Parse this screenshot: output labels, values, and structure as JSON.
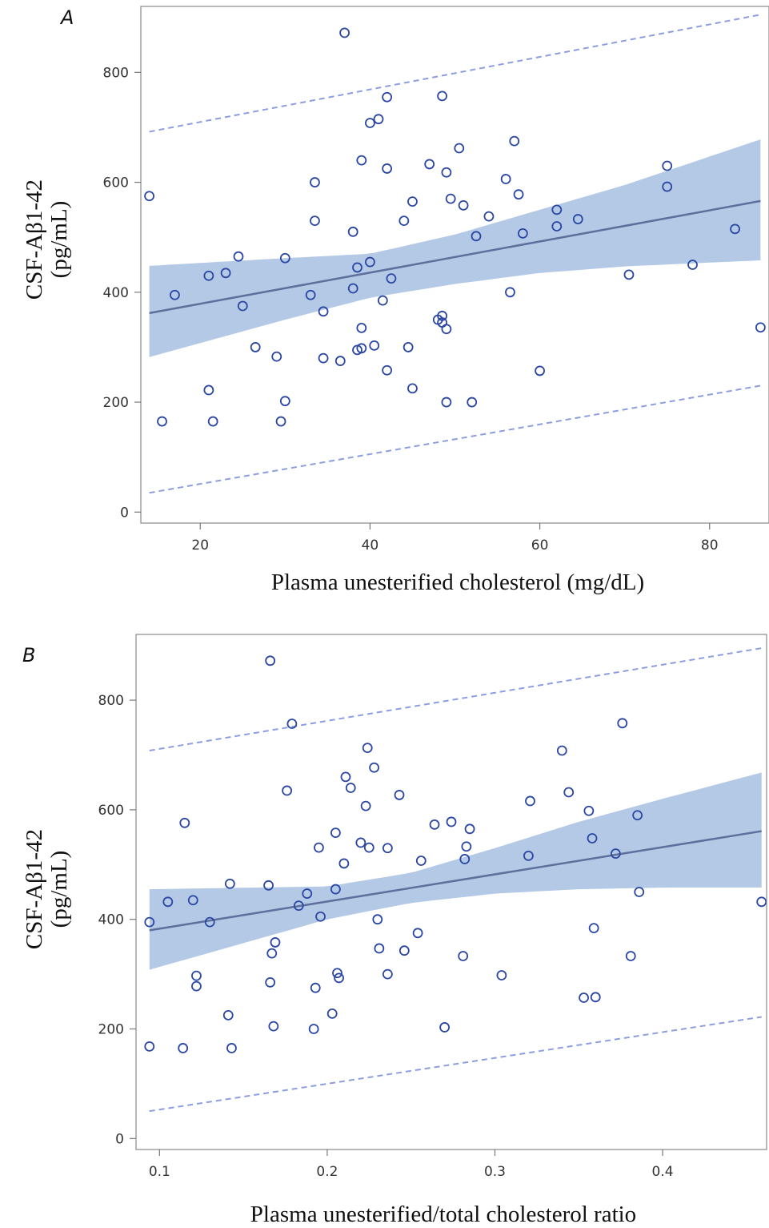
{
  "chart_data": [
    {
      "type": "scatter",
      "panel_label": "A",
      "xlabel": "Plasma unesterified cholesterol (mg/dL)",
      "ylabel": "CSF-Aβ1-42 (pg/mL)",
      "ylabel_lines": [
        "CSF-Aβ1-42",
        "(pg/mL)"
      ],
      "xlim": [
        13,
        87
      ],
      "ylim": [
        -20,
        920
      ],
      "xticks": [
        20,
        40,
        60,
        80
      ],
      "yticks": [
        0,
        200,
        400,
        600,
        800
      ],
      "grid": false,
      "series": [
        {
          "kind": "points",
          "x": [
            14,
            15.5,
            17,
            21,
            21,
            21.5,
            23,
            24.5,
            25,
            26.5,
            29,
            29.5,
            30,
            30,
            33,
            33.5,
            33.5,
            34.5,
            34.5,
            36.5,
            37,
            38,
            38,
            38.5,
            38.5,
            39,
            39,
            39,
            40,
            40,
            40.5,
            41,
            41.5,
            42,
            42,
            42,
            42.5,
            44,
            44.5,
            45,
            45,
            47,
            48,
            48.5,
            48.5,
            48.5,
            49,
            49,
            49,
            49.5,
            50.5,
            51,
            52,
            52.5,
            54,
            56,
            56.5,
            57,
            57.5,
            58,
            60,
            62,
            62,
            64.5,
            70.5,
            75,
            75,
            78,
            83,
            86
          ],
          "y": [
            575,
            165,
            395,
            430,
            222,
            165,
            435,
            465,
            375,
            300,
            283,
            165,
            462,
            202,
            395,
            600,
            530,
            365,
            280,
            275,
            872,
            510,
            407,
            445,
            295,
            335,
            298,
            640,
            455,
            708,
            303,
            715,
            385,
            625,
            755,
            258,
            425,
            530,
            300,
            225,
            565,
            633,
            350,
            757,
            357,
            345,
            618,
            333,
            200,
            570,
            662,
            558,
            200,
            502,
            538,
            606,
            400,
            675,
            578,
            507,
            257,
            550,
            520,
            533,
            432,
            630,
            592,
            450,
            515,
            336
          ]
        },
        {
          "kind": "fit",
          "x": [
            14,
            86
          ],
          "y": [
            362,
            566
          ]
        },
        {
          "kind": "confidence_band",
          "x": [
            14,
            30,
            40,
            50,
            60,
            70,
            86
          ],
          "lower": [
            282,
            350,
            390,
            415,
            435,
            447,
            458
          ],
          "upper": [
            448,
            462,
            470,
            505,
            550,
            595,
            678
          ]
        },
        {
          "kind": "prediction_limits",
          "x": [
            14,
            86
          ],
          "lower": [
            35,
            230
          ],
          "upper": [
            692,
            905
          ]
        }
      ]
    },
    {
      "type": "scatter",
      "panel_label": "B",
      "xlabel": "Plasma unesterified/total cholesterol ratio",
      "ylabel": "CSF-Aβ1-42 (pg/mL)",
      "ylabel_lines": [
        "CSF-Aβ1-42",
        "(pg/mL)"
      ],
      "xlim": [
        0.086,
        0.462
      ],
      "ylim": [
        -20,
        920
      ],
      "xticks": [
        0.1,
        0.2,
        0.3,
        0.4
      ],
      "yticks": [
        0,
        200,
        400,
        600,
        800
      ],
      "grid": false,
      "series": [
        {
          "kind": "points",
          "x": [
            0.094,
            0.094,
            0.105,
            0.114,
            0.115,
            0.12,
            0.122,
            0.122,
            0.13,
            0.141,
            0.142,
            0.143,
            0.165,
            0.166,
            0.166,
            0.167,
            0.168,
            0.169,
            0.176,
            0.179,
            0.183,
            0.188,
            0.192,
            0.193,
            0.195,
            0.196,
            0.203,
            0.205,
            0.205,
            0.206,
            0.207,
            0.21,
            0.211,
            0.214,
            0.22,
            0.223,
            0.224,
            0.225,
            0.228,
            0.23,
            0.231,
            0.236,
            0.236,
            0.243,
            0.246,
            0.254,
            0.256,
            0.264,
            0.27,
            0.274,
            0.281,
            0.282,
            0.283,
            0.285,
            0.304,
            0.32,
            0.321,
            0.34,
            0.344,
            0.353,
            0.356,
            0.358,
            0.359,
            0.36,
            0.372,
            0.376,
            0.381,
            0.385,
            0.386,
            0.459
          ],
          "y": [
            395,
            168,
            432,
            165,
            576,
            435,
            278,
            297,
            395,
            225,
            465,
            165,
            462,
            285,
            872,
            338,
            205,
            358,
            635,
            757,
            425,
            447,
            200,
            275,
            531,
            405,
            228,
            558,
            455,
            302,
            293,
            502,
            660,
            640,
            540,
            607,
            713,
            531,
            677,
            400,
            347,
            300,
            530,
            627,
            343,
            375,
            507,
            573,
            203,
            578,
            333,
            510,
            533,
            565,
            298,
            516,
            616,
            708,
            632,
            257,
            598,
            548,
            384,
            258,
            520,
            758,
            333,
            590,
            450,
            432
          ]
        },
        {
          "kind": "fit",
          "x": [
            0.094,
            0.459
          ],
          "y": [
            380,
            561
          ]
        },
        {
          "kind": "confidence_band",
          "x": [
            0.094,
            0.2,
            0.25,
            0.3,
            0.35,
            0.4,
            0.459
          ],
          "lower": [
            308,
            400,
            430,
            447,
            455,
            458,
            458
          ],
          "upper": [
            455,
            460,
            485,
            530,
            578,
            620,
            668
          ]
        },
        {
          "kind": "prediction_limits",
          "x": [
            0.094,
            0.459
          ],
          "lower": [
            50,
            222
          ],
          "upper": [
            708,
            895
          ]
        }
      ]
    }
  ],
  "colors": {
    "marker": "#2b47a3",
    "fit_line": "#5d6f9a",
    "band": "#b3c9e6",
    "limits": "#8d9ee0"
  }
}
